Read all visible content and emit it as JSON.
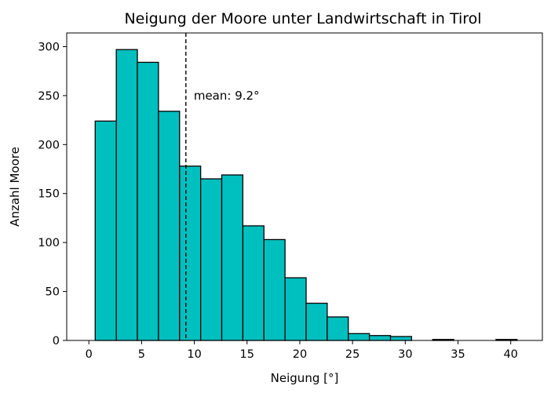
{
  "chart_data": {
    "type": "bar",
    "title": "Neigung der Moore unter Landwirtschaft in Tirol",
    "xlabel": "Neigung [°]",
    "ylabel": "Anzahl Moore",
    "xlim": [
      -2.1,
      43.0
    ],
    "ylim": [
      0,
      314
    ],
    "bin_edges": [
      0.6,
      2.6,
      4.6,
      6.6,
      8.6,
      10.6,
      12.6,
      14.6,
      16.6,
      18.6,
      20.6,
      22.6,
      24.6,
      26.6,
      28.6,
      30.6,
      32.6,
      34.6,
      36.6,
      38.6,
      40.6
    ],
    "values": [
      224,
      297,
      284,
      234,
      178,
      165,
      169,
      117,
      103,
      64,
      38,
      24,
      7,
      5,
      4,
      0,
      1,
      0,
      0,
      1
    ],
    "x_ticks": [
      0,
      5,
      10,
      15,
      20,
      25,
      30,
      35,
      40
    ],
    "x_tick_labels": [
      "0",
      "5",
      "10",
      "15",
      "20",
      "25",
      "30",
      "35",
      "40"
    ],
    "y_ticks": [
      0,
      50,
      100,
      150,
      200,
      250,
      300
    ],
    "y_tick_labels": [
      "0",
      "50",
      "100",
      "150",
      "200",
      "250",
      "300"
    ],
    "mean_line": {
      "x": 9.2,
      "label": "mean: 9.2°"
    },
    "colors": {
      "bar_fill": "#00BFBF",
      "bar_edge": "#000000",
      "mean_line": "#000000"
    },
    "grid": false,
    "legend": "none"
  }
}
